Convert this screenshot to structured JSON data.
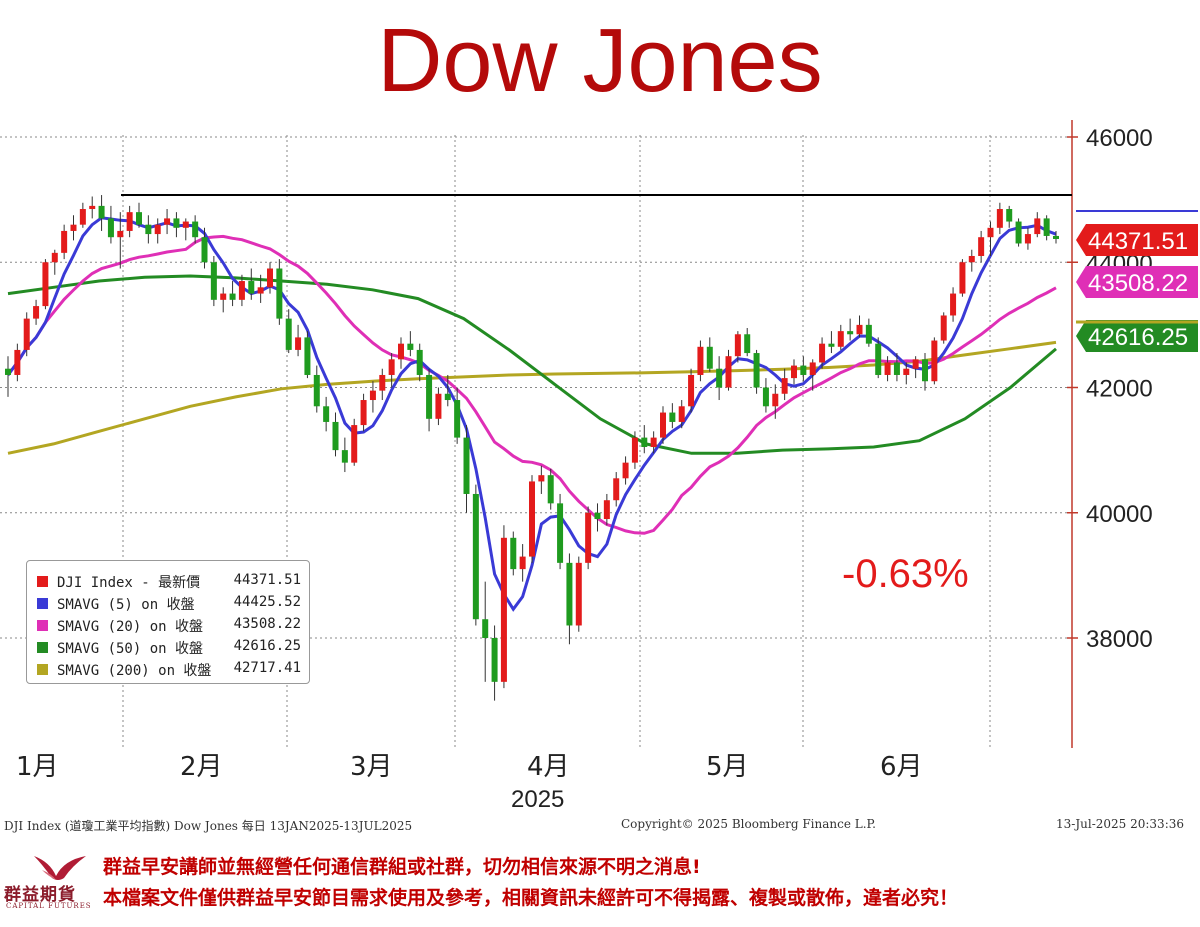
{
  "title": "Dow Jones",
  "colors": {
    "title": "#b40a0a",
    "up": "#e31b1b",
    "down": "#1f9b1f",
    "ma5": "#3a3ad6",
    "ma20": "#df2fb6",
    "ma50": "#238b23",
    "ma200": "#b3a622",
    "resistance": "#000000",
    "axis": "#c0392b"
  },
  "chart_data": {
    "type": "candlestick",
    "y_ticks": [
      38000,
      40000,
      42000,
      44000,
      46000
    ],
    "ylim": [
      36500,
      46400
    ],
    "x_months": [
      "1月",
      "2月",
      "3月",
      "4月",
      "5月",
      "6月"
    ],
    "x_year": "2025",
    "resistance_level": 45073,
    "last_value_tags": [
      {
        "label": "44371.51",
        "value": 44371.51,
        "color": "#e31b1b"
      },
      {
        "label": "43508.22",
        "value": 43508.22,
        "color": "#df2fb6"
      },
      {
        "label": "42616.25",
        "value": 42616.25,
        "color": "#238b23"
      }
    ],
    "candles": [
      [
        42300,
        42500,
        41850,
        42200
      ],
      [
        42200,
        42700,
        42100,
        42600
      ],
      [
        42600,
        43200,
        42500,
        43100
      ],
      [
        43100,
        43400,
        43000,
        43300
      ],
      [
        43300,
        44050,
        43250,
        44000
      ],
      [
        44000,
        44200,
        43800,
        44150
      ],
      [
        44150,
        44600,
        44050,
        44500
      ],
      [
        44500,
        44750,
        44350,
        44600
      ],
      [
        44600,
        44950,
        44550,
        44850
      ],
      [
        44850,
        45050,
        44700,
        44900
      ],
      [
        44900,
        45073,
        44500,
        44700
      ],
      [
        44700,
        44900,
        44300,
        44400
      ],
      [
        44400,
        44800,
        43900,
        44500
      ],
      [
        44500,
        44900,
        44400,
        44800
      ],
      [
        44800,
        44950,
        44550,
        44600
      ],
      [
        44600,
        44750,
        44300,
        44450
      ],
      [
        44450,
        44700,
        44300,
        44600
      ],
      [
        44600,
        44850,
        44450,
        44700
      ],
      [
        44700,
        44800,
        44400,
        44550
      ],
      [
        44550,
        44700,
        44350,
        44650
      ],
      [
        44650,
        44750,
        44300,
        44400
      ],
      [
        44400,
        44550,
        43900,
        44000
      ],
      [
        44000,
        44100,
        43300,
        43400
      ],
      [
        43400,
        43600,
        43200,
        43500
      ],
      [
        43500,
        43700,
        43300,
        43400
      ],
      [
        43400,
        43800,
        43300,
        43700
      ],
      [
        43700,
        43900,
        43400,
        43500
      ],
      [
        43500,
        43800,
        43350,
        43600
      ],
      [
        43600,
        44000,
        43500,
        43900
      ],
      [
        43900,
        44050,
        43000,
        43100
      ],
      [
        43100,
        43250,
        42550,
        42600
      ],
      [
        42600,
        43000,
        42500,
        42800
      ],
      [
        42800,
        42900,
        42150,
        42200
      ],
      [
        42200,
        42350,
        41600,
        41700
      ],
      [
        41700,
        41850,
        41300,
        41450
      ],
      [
        41450,
        41600,
        40900,
        41000
      ],
      [
        41000,
        41200,
        40650,
        40800
      ],
      [
        40800,
        41500,
        40750,
        41400
      ],
      [
        41400,
        41900,
        41300,
        41800
      ],
      [
        41800,
        42100,
        41600,
        41950
      ],
      [
        41950,
        42300,
        41800,
        42200
      ],
      [
        42200,
        42550,
        42000,
        42450
      ],
      [
        42450,
        42800,
        42300,
        42700
      ],
      [
        42700,
        42900,
        42500,
        42600
      ],
      [
        42600,
        42700,
        42100,
        42200
      ],
      [
        42200,
        42300,
        41300,
        41500
      ],
      [
        41500,
        42000,
        41400,
        41900
      ],
      [
        41900,
        42200,
        41700,
        41800
      ],
      [
        41800,
        42000,
        41100,
        41200
      ],
      [
        41200,
        41400,
        40000,
        40300
      ],
      [
        40300,
        40450,
        38200,
        38300
      ],
      [
        38300,
        38900,
        37300,
        38000
      ],
      [
        38000,
        38200,
        37000,
        37300
      ],
      [
        37300,
        39800,
        37200,
        39600
      ],
      [
        39600,
        39700,
        39000,
        39100
      ],
      [
        39100,
        39500,
        38900,
        39300
      ],
      [
        39300,
        40600,
        39200,
        40500
      ],
      [
        40500,
        40750,
        40300,
        40600
      ],
      [
        40600,
        40700,
        40050,
        40150
      ],
      [
        40150,
        40300,
        39100,
        39200
      ],
      [
        39200,
        39350,
        37900,
        38200
      ],
      [
        38200,
        39300,
        38100,
        39200
      ],
      [
        39200,
        40100,
        39100,
        40000
      ],
      [
        40000,
        40150,
        39700,
        39900
      ],
      [
        39900,
        40300,
        39800,
        40200
      ],
      [
        40200,
        40650,
        40100,
        40550
      ],
      [
        40550,
        40900,
        40450,
        40800
      ],
      [
        40800,
        41300,
        40700,
        41200
      ],
      [
        41200,
        41400,
        40950,
        41050
      ],
      [
        41050,
        41300,
        40950,
        41200
      ],
      [
        41200,
        41700,
        41100,
        41600
      ],
      [
        41600,
        41750,
        41350,
        41450
      ],
      [
        41450,
        41800,
        41350,
        41700
      ],
      [
        41700,
        42300,
        41600,
        42200
      ],
      [
        42200,
        42750,
        42100,
        42650
      ],
      [
        42650,
        42800,
        42250,
        42300
      ],
      [
        42300,
        42500,
        41800,
        42000
      ],
      [
        42000,
        42600,
        41950,
        42500
      ],
      [
        42500,
        42900,
        42400,
        42850
      ],
      [
        42850,
        42950,
        42500,
        42550
      ],
      [
        42550,
        42600,
        41900,
        42000
      ],
      [
        42000,
        42150,
        41600,
        41700
      ],
      [
        41700,
        42050,
        41500,
        41900
      ],
      [
        41900,
        42300,
        41800,
        42150
      ],
      [
        42150,
        42450,
        42050,
        42350
      ],
      [
        42350,
        42500,
        42100,
        42200
      ],
      [
        42200,
        42450,
        41950,
        42400
      ],
      [
        42400,
        42800,
        42300,
        42700
      ],
      [
        42700,
        42900,
        42550,
        42650
      ],
      [
        42650,
        43000,
        42600,
        42900
      ],
      [
        42900,
        43100,
        42750,
        42850
      ],
      [
        42850,
        43150,
        42800,
        43000
      ],
      [
        43000,
        43100,
        42650,
        42700
      ],
      [
        42700,
        42800,
        42150,
        42200
      ],
      [
        42200,
        42500,
        42100,
        42400
      ],
      [
        42400,
        42550,
        42100,
        42200
      ],
      [
        42200,
        42400,
        42050,
        42300
      ],
      [
        42300,
        42500,
        42150,
        42450
      ],
      [
        42450,
        42550,
        41950,
        42100
      ],
      [
        42100,
        42800,
        42050,
        42750
      ],
      [
        42750,
        43200,
        42700,
        43150
      ],
      [
        43150,
        43600,
        43050,
        43500
      ],
      [
        43500,
        44050,
        43450,
        44000
      ],
      [
        44000,
        44200,
        43850,
        44100
      ],
      [
        44100,
        44500,
        44000,
        44400
      ],
      [
        44400,
        44650,
        44100,
        44550
      ],
      [
        44550,
        44950,
        44450,
        44850
      ],
      [
        44850,
        44900,
        44550,
        44650
      ],
      [
        44650,
        44700,
        44250,
        44300
      ],
      [
        44300,
        44550,
        44200,
        44450
      ],
      [
        44450,
        44800,
        44400,
        44700
      ],
      [
        44700,
        44750,
        44350,
        44420
      ],
      [
        44420,
        44500,
        44300,
        44371.51
      ]
    ],
    "legend": [
      {
        "name": "DJI Index - 最新價",
        "value": "44371.51",
        "color": "#e31b1b"
      },
      {
        "name": "SMAVG (5)  on 收盤",
        "value": "44425.52",
        "color": "#3a3ad6"
      },
      {
        "name": "SMAVG (20)  on 收盤",
        "value": "43508.22",
        "color": "#df2fb6"
      },
      {
        "name": "SMAVG (50)  on 收盤",
        "value": "42616.25",
        "color": "#238b23"
      },
      {
        "name": "SMAVG (200)  on 收盤",
        "value": "42717.41",
        "color": "#b3a622"
      }
    ],
    "ma200": [
      40950,
      41100,
      41300,
      41500,
      41700,
      41850,
      41980,
      42050,
      42100,
      42140,
      42170,
      42200,
      42215,
      42225,
      42235,
      42250,
      42270,
      42290,
      42320,
      42360,
      42420,
      42520,
      42620,
      42720
    ],
    "ma50_start": [
      43500,
      43600,
      43700,
      43760,
      43780,
      43750,
      43700,
      43650,
      43560,
      43420,
      43100,
      42600,
      42050,
      41500,
      41100,
      40950,
      40950,
      41000,
      41020,
      41050,
      41150,
      41500,
      42000,
      42616
    ]
  },
  "annotation": "-0.63%",
  "footer": {
    "left": "DJI Index (道瓊工業平均指數) Dow Jones   每日 13JAN2025-13JUL2025",
    "center": "Copyright© 2025 Bloomberg Finance L.P.",
    "right": "13-Jul-2025 20:33:36"
  },
  "brand": {
    "name": "群益期貨",
    "sub": "CAPITAL FUTURES"
  },
  "disclaimer": [
    "群益早安講師並無經營任何通信群組或社群，切勿相信來源不明之消息!",
    "本檔案文件僅供群益早安節目需求使用及參考，相關資訊未經許可不得揭露、複製或散佈，違者必究！"
  ]
}
